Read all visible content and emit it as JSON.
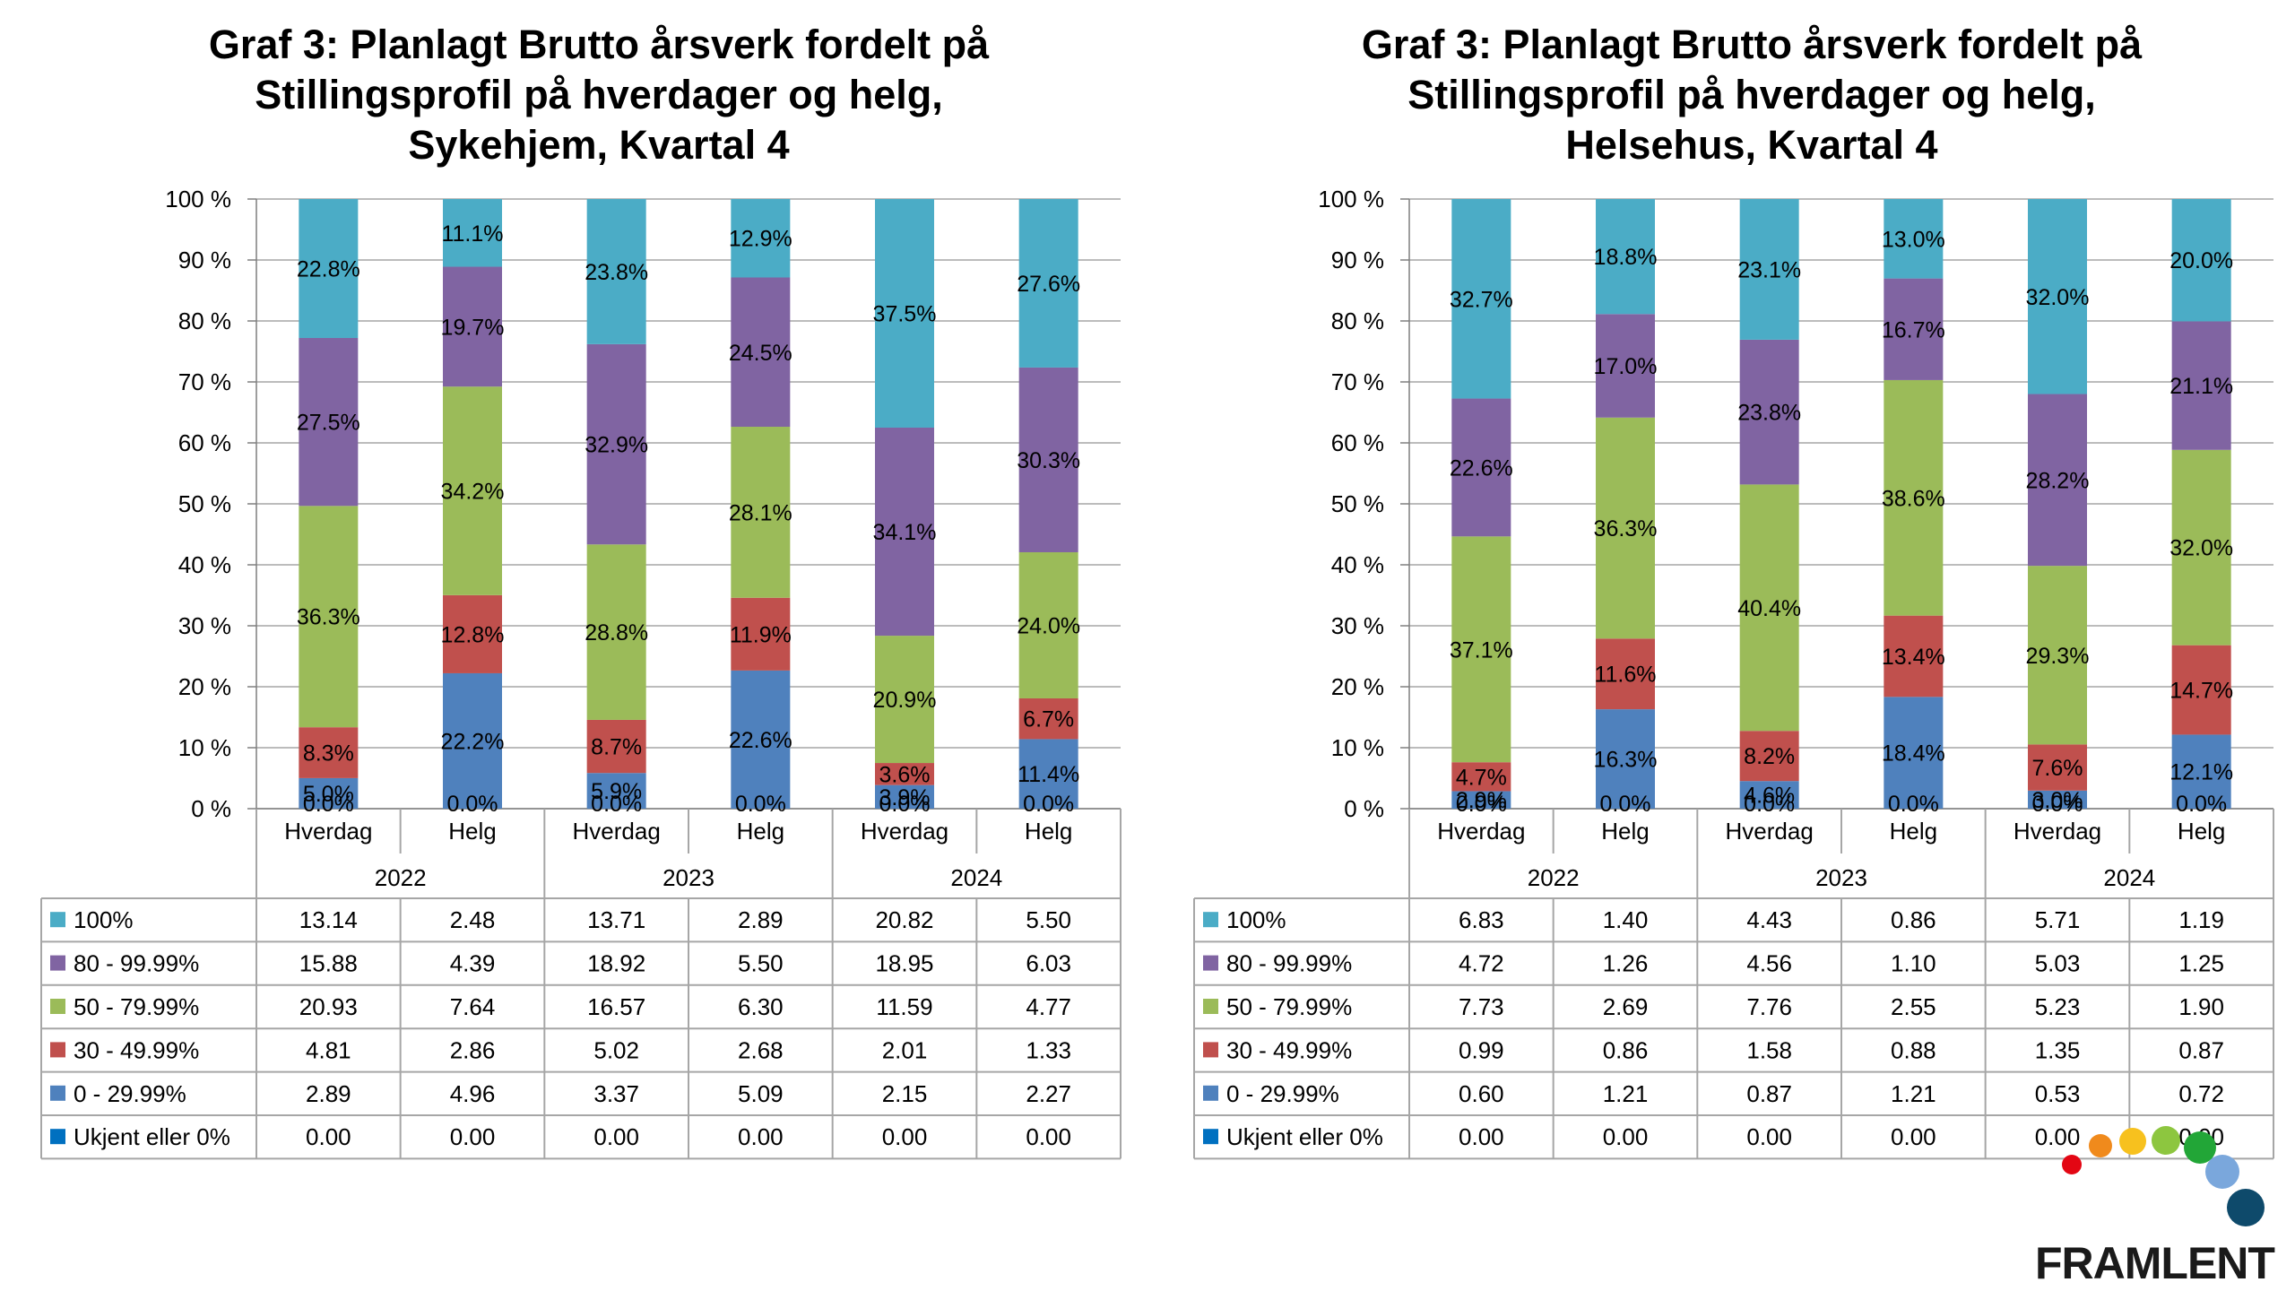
{
  "chart_data": [
    {
      "type": "bar",
      "stacked": true,
      "title_lines": [
        "Graf 3: Planlagt Brutto årsverk fordelt på",
        "Stillingsprofil på hverdager og helg,",
        "Sykehjem, Kvartal 4"
      ],
      "years": [
        "2022",
        "2023",
        "2024"
      ],
      "categories": [
        "Hverdag",
        "Helg",
        "Hverdag",
        "Helg",
        "Hverdag",
        "Helg"
      ],
      "y_ticks": [
        "0 %",
        "10 %",
        "20 %",
        "30 %",
        "40 %",
        "50 %",
        "60 %",
        "70 %",
        "80 %",
        "90 %",
        "100 %"
      ],
      "ylim": [
        0,
        100
      ],
      "grid": true,
      "series": [
        {
          "name": "Ukjent eller 0%",
          "color": "#0070C0",
          "percent_labels": [
            "0.0%",
            "0.0%",
            "0.0%",
            "0.0%",
            "0.0%",
            "0.0%"
          ],
          "table_values": [
            "0.00",
            "0.00",
            "0.00",
            "0.00",
            "0.00",
            "0.00"
          ]
        },
        {
          "name": "0 - 29.99%",
          "color": "#4F81BD",
          "percent_labels": [
            "5.0%",
            "22.2%",
            "5.9%",
            "22.6%",
            "3.9%",
            "11.4%"
          ],
          "table_values": [
            "2.89",
            "4.96",
            "3.37",
            "5.09",
            "2.15",
            "2.27"
          ]
        },
        {
          "name": "30 - 49.99%",
          "color": "#C0504D",
          "percent_labels": [
            "8.3%",
            "12.8%",
            "8.7%",
            "11.9%",
            "3.6%",
            "6.7%"
          ],
          "table_values": [
            "4.81",
            "2.86",
            "5.02",
            "2.68",
            "2.01",
            "1.33"
          ]
        },
        {
          "name": "50 - 79.99%",
          "color": "#9BBB59",
          "percent_labels": [
            "36.3%",
            "34.2%",
            "28.8%",
            "28.1%",
            "20.9%",
            "24.0%"
          ],
          "table_values": [
            "20.93",
            "7.64",
            "16.57",
            "6.30",
            "11.59",
            "4.77"
          ]
        },
        {
          "name": "80 - 99.99%",
          "color": "#8064A2",
          "percent_labels": [
            "27.5%",
            "19.7%",
            "32.9%",
            "24.5%",
            "34.1%",
            "30.3%"
          ],
          "table_values": [
            "15.88",
            "4.39",
            "18.92",
            "5.50",
            "18.95",
            "6.03"
          ]
        },
        {
          "name": "100%",
          "color": "#4BACC6",
          "percent_labels": [
            "22.8%",
            "11.1%",
            "23.8%",
            "12.9%",
            "37.5%",
            "27.6%"
          ],
          "table_values": [
            "13.14",
            "2.48",
            "13.71",
            "2.89",
            "20.82",
            "5.50"
          ]
        }
      ]
    },
    {
      "type": "bar",
      "stacked": true,
      "title_lines": [
        "Graf 3: Planlagt Brutto årsverk fordelt på",
        "Stillingsprofil på hverdager og helg,",
        "Helsehus, Kvartal 4"
      ],
      "years": [
        "2022",
        "2023",
        "2024"
      ],
      "categories": [
        "Hverdag",
        "Helg",
        "Hverdag",
        "Helg",
        "Hverdag",
        "Helg"
      ],
      "y_ticks": [
        "0 %",
        "10 %",
        "20 %",
        "30 %",
        "40 %",
        "50 %",
        "60 %",
        "70 %",
        "80 %",
        "90 %",
        "100 %"
      ],
      "ylim": [
        0,
        100
      ],
      "grid": true,
      "series": [
        {
          "name": "Ukjent eller 0%",
          "color": "#0070C0",
          "percent_labels": [
            "0.0%",
            "0.0%",
            "0.0%",
            "0.0%",
            "0.0%",
            "0.0%"
          ],
          "table_values": [
            "0.00",
            "0.00",
            "0.00",
            "0.00",
            "0.00",
            "0.00"
          ]
        },
        {
          "name": "0 - 29.99%",
          "color": "#4F81BD",
          "percent_labels": [
            "2.9%",
            "16.3%",
            "4.6%",
            "18.4%",
            "3.0%",
            "12.1%"
          ],
          "table_values": [
            "0.60",
            "1.21",
            "0.87",
            "1.21",
            "0.53",
            "0.72"
          ]
        },
        {
          "name": "30 - 49.99%",
          "color": "#C0504D",
          "percent_labels": [
            "4.7%",
            "11.6%",
            "8.2%",
            "13.4%",
            "7.6%",
            "14.7%"
          ],
          "table_values": [
            "0.99",
            "0.86",
            "1.58",
            "0.88",
            "1.35",
            "0.87"
          ]
        },
        {
          "name": "50 - 79.99%",
          "color": "#9BBB59",
          "percent_labels": [
            "37.1%",
            "36.3%",
            "40.4%",
            "38.6%",
            "29.3%",
            "32.0%"
          ],
          "table_values": [
            "7.73",
            "2.69",
            "7.76",
            "2.55",
            "5.23",
            "1.90"
          ]
        },
        {
          "name": "80 - 99.99%",
          "color": "#8064A2",
          "percent_labels": [
            "22.6%",
            "17.0%",
            "23.8%",
            "16.7%",
            "28.2%",
            "21.1%"
          ],
          "table_values": [
            "4.72",
            "1.26",
            "4.56",
            "1.10",
            "5.03",
            "1.25"
          ]
        },
        {
          "name": "100%",
          "color": "#4BACC6",
          "percent_labels": [
            "32.7%",
            "18.8%",
            "23.1%",
            "13.0%",
            "32.0%",
            "20.0%"
          ],
          "table_values": [
            "6.83",
            "1.40",
            "4.43",
            "0.86",
            "5.71",
            "1.19"
          ]
        }
      ]
    }
  ],
  "logo": {
    "text": "FRAMLENT",
    "dot_colors": [
      "#E30613",
      "#F08A1C",
      "#F7C11E",
      "#8DC63F",
      "#22A637",
      "#7AA7DC",
      "#0E4A6B"
    ]
  }
}
